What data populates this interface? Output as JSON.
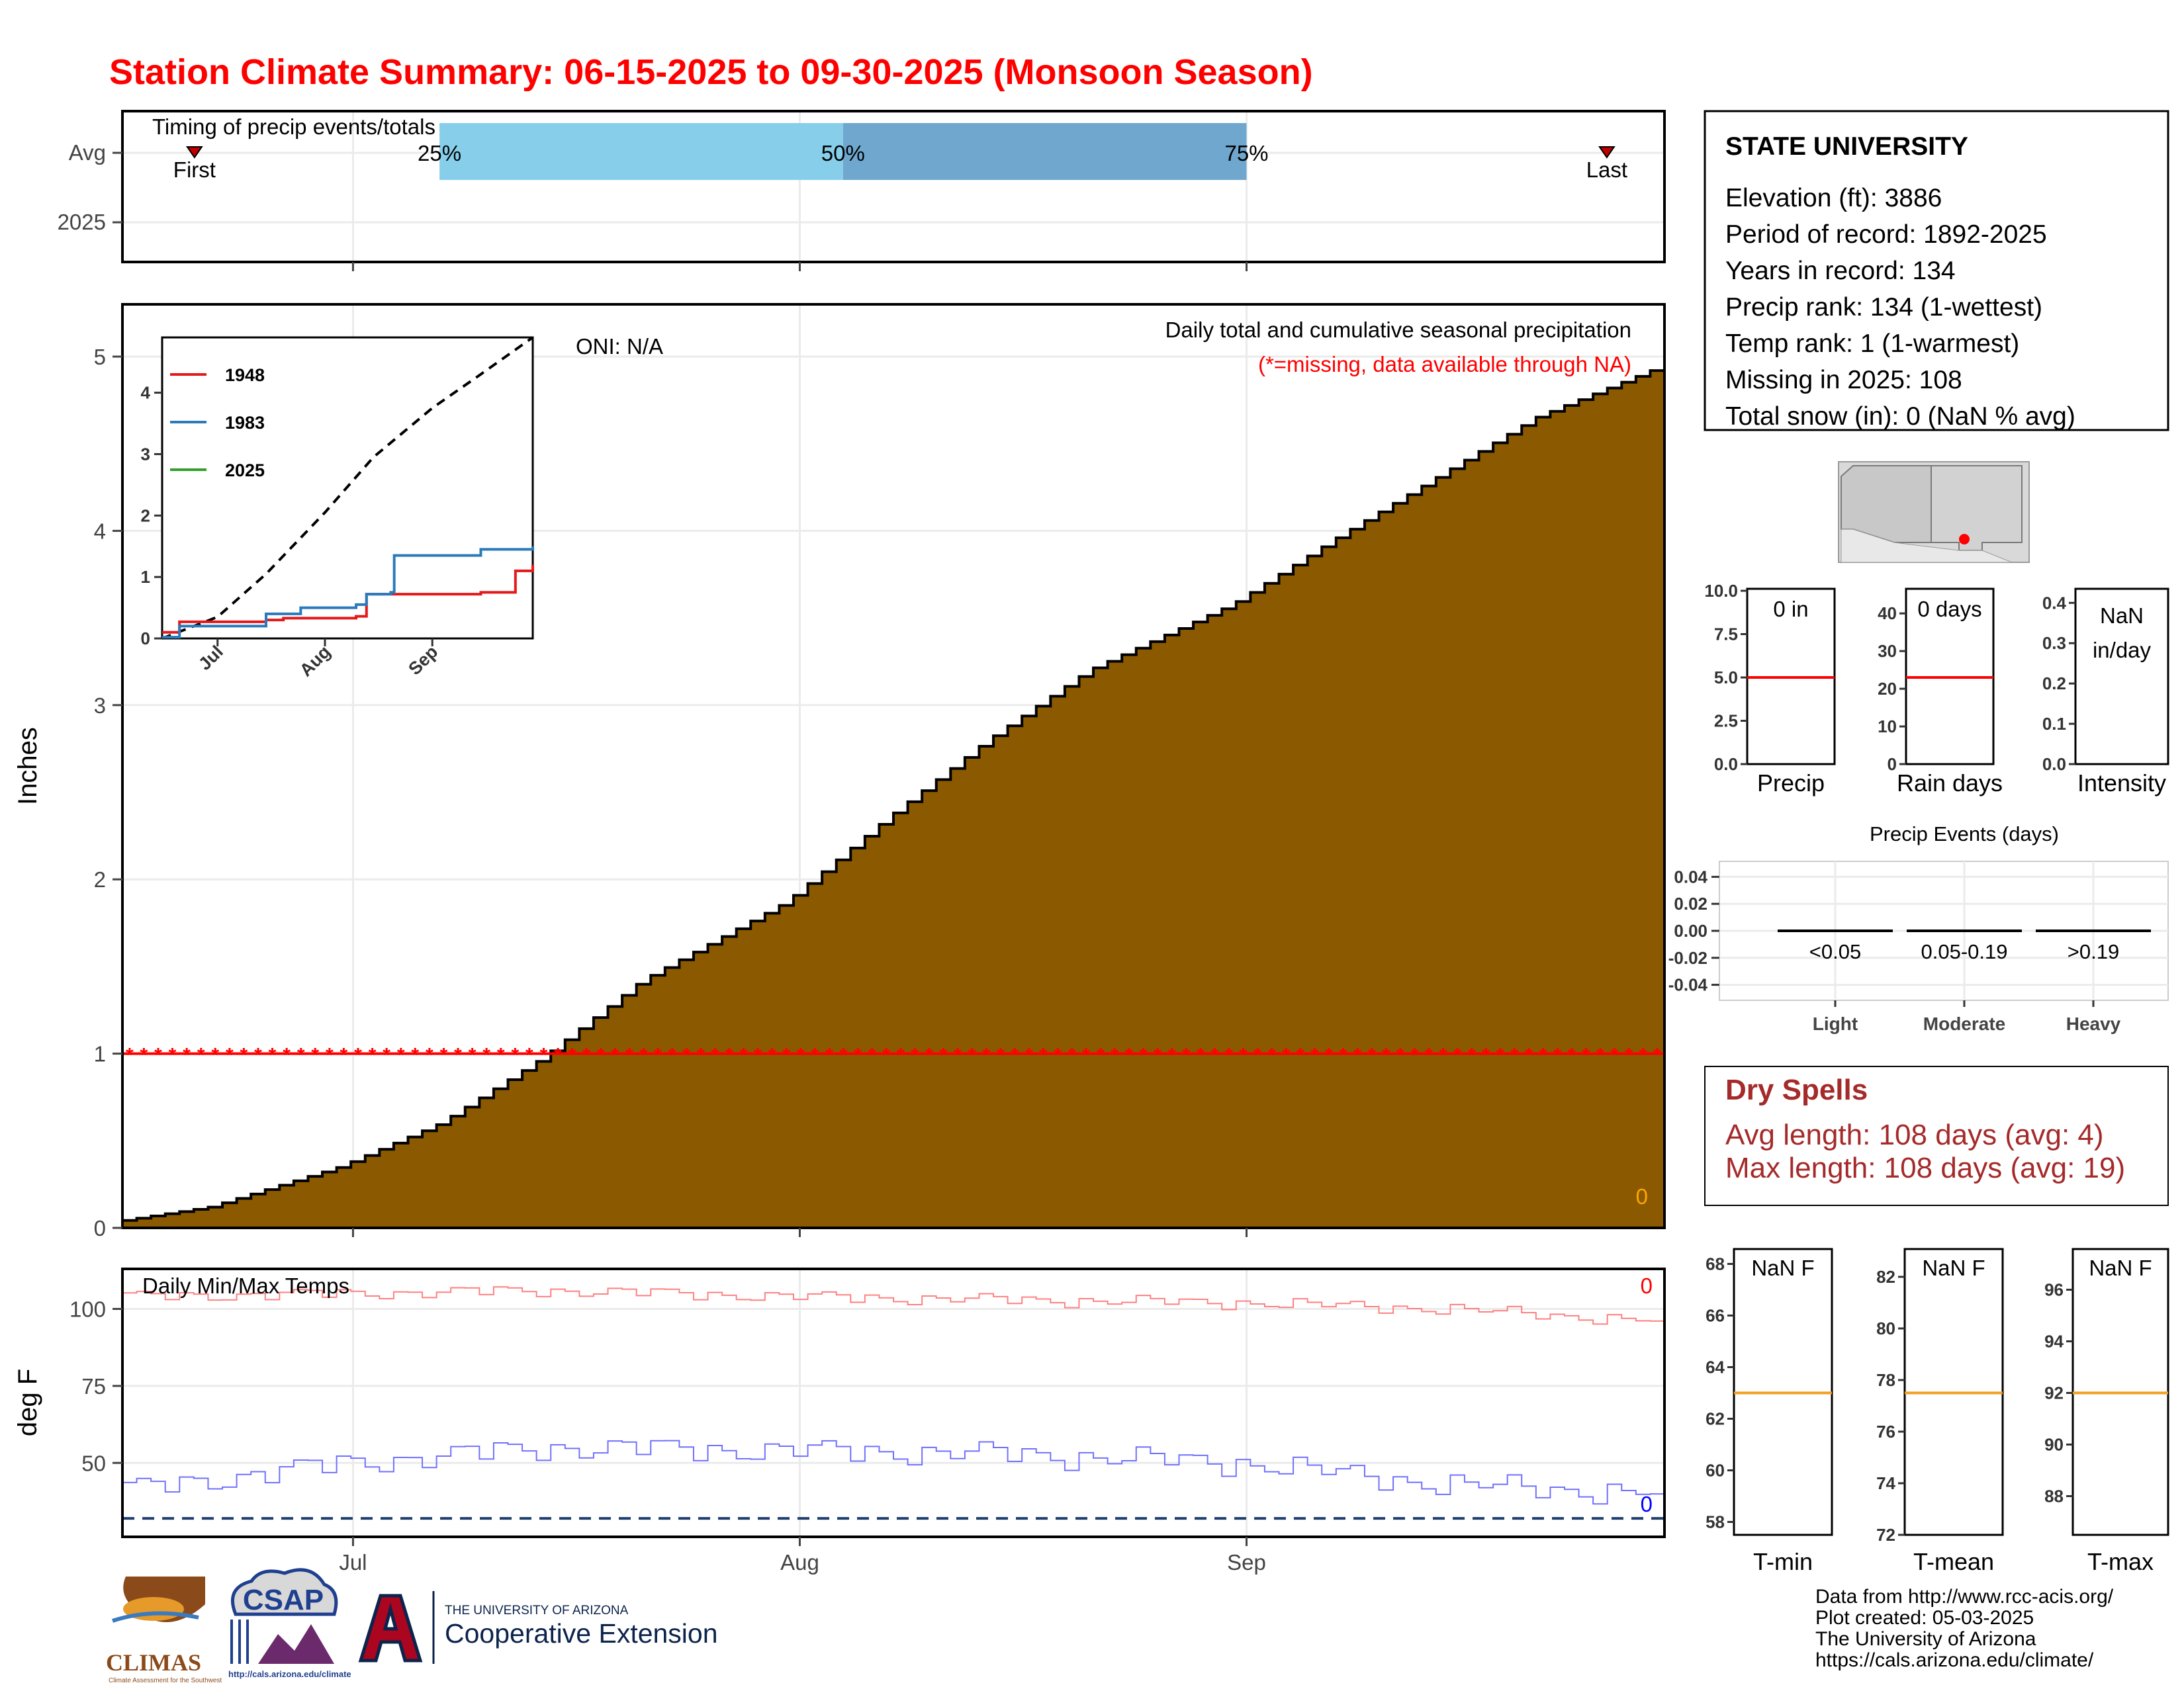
{
  "page": {
    "title": "Station Climate Summary: 06-15-2025 to 09-30-2025 (Monsoon Season)",
    "colors": {
      "title": "#ff0000",
      "precip_fill": "#8b5a00",
      "missing": "#ff0000",
      "tmax": "#ff8080",
      "tmin": "#7070ff",
      "threshold": "#1f3f6f",
      "avg_line": "#f0a020",
      "dry_spells": "#a52a2a"
    }
  },
  "timing": {
    "label": "Timing of precip events/totals",
    "y_labels": [
      "Avg",
      "2025"
    ],
    "pct_labels": [
      "25%",
      "50%",
      "75%"
    ],
    "first_label": "First",
    "last_label": "Last",
    "markers": {
      "first": "2025-06-20",
      "p25": "2025-07-07",
      "p50": "2025-08-04",
      "p75": "2025-09-01",
      "last": "2025-09-26"
    },
    "colors": {
      "q1": "#87ceeb",
      "q2": "#6fa7cf"
    }
  },
  "station_info": {
    "name": "STATE UNIVERSITY",
    "lines": [
      "Elevation (ft): 3886",
      "Period of record: 1892-2025",
      "Years in record: 134",
      "Precip rank: 134 (1-wettest)",
      "Temp rank: 1 (1-warmest)",
      "Missing in 2025: 108",
      "Total snow (in): 0 (NaN % avg)"
    ]
  },
  "precip_panel": {
    "ylabel": "Inches",
    "title_line1": "Daily total and cumulative seasonal precipitation",
    "title_line2": "(*=missing, data available through NA)",
    "oni_label": "ONI: N/A",
    "count_label": "0",
    "missing_marker": "*",
    "x_ticks": [
      "Jul",
      "Aug",
      "Sep"
    ]
  },
  "inset": {
    "legend": [
      "1948",
      "1983",
      "2025"
    ],
    "colors": [
      "#e31a1c",
      "#2b7bba",
      "#33a02c"
    ],
    "x_ticks": [
      "Jul",
      "Aug",
      "Sep"
    ]
  },
  "mini_bars": [
    {
      "value_label": "0 in",
      "xlabel": "Precip"
    },
    {
      "value_label": "0 days",
      "xlabel": "Rain days"
    },
    {
      "value_label": "NaN in/day",
      "xlabel": "Intensity"
    }
  ],
  "precip_events": {
    "title": "Precip Events (days)",
    "x_labels": [
      "Light",
      "Moderate",
      "Heavy"
    ],
    "bar_labels": [
      "<0.05",
      "0.05-0.19",
      ">0.19"
    ]
  },
  "dry_spells": {
    "title": "Dry Spells",
    "avg": "Avg length: 108 days (avg: 4)",
    "max": "Max length: 108 days (avg: 19)"
  },
  "temp_panel": {
    "ylabel": "deg F",
    "title": "Daily Min/Max Temps",
    "tmax_count": "0",
    "tmin_count": "0",
    "x_ticks": [
      "Jul",
      "Aug",
      "Sep"
    ]
  },
  "temp_summaries": [
    {
      "value_label": "NaN F",
      "xlabel": "T-min"
    },
    {
      "value_label": "NaN F",
      "xlabel": "T-mean"
    },
    {
      "value_label": "NaN F",
      "xlabel": "T-max"
    }
  ],
  "logos": {
    "climas": "CLIMAS",
    "climas_sub": "Climate Assessment for the Southwest",
    "csap": "CSAP",
    "csap_url": "http://cals.arizona.edu/climate",
    "ua_small": "THE UNIVERSITY OF ARIZONA",
    "ua_big": "Cooperative Extension"
  },
  "footer": [
    "Data from http://www.rcc-acis.org/",
    "Plot created: 05-03-2025",
    "The University of Arizona",
    "https://cals.arizona.edu/climate/"
  ],
  "chart_data": [
    {
      "id": "timing",
      "type": "bar",
      "title": "Timing of precip events/totals",
      "categories": [
        "Avg",
        "2025"
      ],
      "avg_percentile_dates": {
        "25%": "2025-07-07",
        "50%": "2025-08-04",
        "75%": "2025-09-01"
      },
      "avg_first_event": "2025-06-20",
      "avg_last_event": "2025-09-26",
      "x_range": [
        "2025-06-15",
        "2025-09-30"
      ]
    },
    {
      "id": "cumulative_precip",
      "type": "area",
      "title": "Daily total and cumulative seasonal precipitation",
      "ylabel": "Inches",
      "ylim": [
        0,
        5.3
      ],
      "x_range": [
        "2025-06-15",
        "2025-09-30"
      ],
      "x_ticks": [
        "Jul",
        "Aug",
        "Sep"
      ],
      "y_ticks": [
        0,
        1,
        2,
        3,
        4,
        5
      ],
      "grid": true,
      "series": [
        {
          "type": "step-area",
          "x": [
            "2025-06-15",
            "2025-06-22",
            "2025-07-01",
            "2025-07-08",
            "2025-07-15",
            "2025-07-22",
            "2025-08-01",
            "2025-08-08",
            "2025-08-15",
            "2025-08-22",
            "2025-09-01",
            "2025-09-08",
            "2025-09-15",
            "2025-09-22",
            "2025-09-30"
          ],
          "y": [
            0.03,
            0.12,
            0.35,
            0.6,
            0.97,
            1.42,
            1.87,
            2.35,
            2.8,
            3.2,
            3.58,
            3.95,
            4.3,
            4.65,
            4.92
          ]
        },
        {
          "name": "missing",
          "type": "markers",
          "y": 1.0
        }
      ]
    },
    {
      "id": "inset_cumulative",
      "type": "line",
      "ylim": [
        0,
        4.9
      ],
      "y_ticks": [
        0,
        1,
        2,
        3,
        4
      ],
      "x_ticks": [
        "Jul",
        "Aug",
        "Sep"
      ],
      "series": [
        {
          "name": "1948",
          "x": [
            "2025-06-15",
            "2025-06-20",
            "2025-07-15",
            "2025-07-20",
            "2025-08-10",
            "2025-08-13",
            "2025-09-15",
            "2025-09-25",
            "2025-09-30"
          ],
          "y": [
            0.1,
            0.27,
            0.3,
            0.33,
            0.36,
            0.72,
            0.75,
            1.1,
            1.2
          ]
        },
        {
          "name": "1983",
          "x": [
            "2025-06-15",
            "2025-06-20",
            "2025-07-07",
            "2025-07-15",
            "2025-07-25",
            "2025-08-10",
            "2025-08-13",
            "2025-08-20",
            "2025-08-21",
            "2025-09-15",
            "2025-09-30"
          ],
          "y": [
            0.02,
            0.2,
            0.2,
            0.4,
            0.5,
            0.55,
            0.72,
            0.75,
            1.35,
            1.45,
            1.5
          ]
        },
        {
          "name": "2025",
          "x": [],
          "y": []
        },
        {
          "name": "average",
          "x": [
            "2025-06-15",
            "2025-07-01",
            "2025-07-15",
            "2025-08-01",
            "2025-08-15",
            "2025-09-01",
            "2025-09-15",
            "2025-09-30"
          ],
          "y": [
            0.0,
            0.35,
            1.05,
            2.05,
            2.95,
            3.75,
            4.3,
            4.9
          ]
        }
      ]
    },
    {
      "id": "precip_total",
      "type": "bar",
      "xlabel": "Precip",
      "ylim": [
        0,
        10
      ],
      "y_ticks": [
        0.0,
        2.5,
        5.0,
        7.5,
        10.0
      ],
      "values": [
        0
      ],
      "average": 5.0
    },
    {
      "id": "rain_days",
      "type": "bar",
      "xlabel": "Rain days",
      "ylim": [
        0,
        46
      ],
      "y_ticks": [
        0,
        10,
        20,
        30,
        40
      ],
      "values": [
        0
      ],
      "average": 23
    },
    {
      "id": "intensity",
      "type": "bar",
      "xlabel": "Intensity",
      "ylim": [
        0,
        0.43
      ],
      "y_ticks": [
        0.0,
        0.1,
        0.2,
        0.3,
        0.4
      ],
      "values": [
        null
      ]
    },
    {
      "id": "precip_events",
      "type": "bar",
      "title": "Precip Events (days)",
      "categories": [
        "Light",
        "Moderate",
        "Heavy"
      ],
      "values": [
        0,
        0,
        0
      ],
      "ylim": [
        -0.05,
        0.05
      ],
      "y_ticks": [
        -0.04,
        -0.02,
        0.0,
        0.02,
        0.04
      ]
    },
    {
      "id": "daily_temps",
      "type": "line",
      "title": "Daily Min/Max Temps",
      "ylabel": "deg F",
      "ylim": [
        26,
        113
      ],
      "y_ticks": [
        50,
        75,
        100
      ],
      "x_ticks": [
        "Jul",
        "Aug",
        "Sep"
      ],
      "threshold": 32,
      "series": [
        {
          "name": "Tmax",
          "x": [
            "2025-06-15",
            "2025-07-01",
            "2025-07-15",
            "2025-08-01",
            "2025-08-15",
            "2025-09-01",
            "2025-09-15",
            "2025-09-30"
          ],
          "y": [
            104,
            105,
            106,
            104,
            103,
            102,
            100,
            96
          ]
        },
        {
          "name": "Tmin",
          "x": [
            "2025-06-15",
            "2025-07-01",
            "2025-07-15",
            "2025-08-01",
            "2025-08-15",
            "2025-09-01",
            "2025-09-15",
            "2025-09-30"
          ],
          "y": [
            41,
            50,
            55,
            54,
            53,
            50,
            43,
            40
          ]
        }
      ]
    },
    {
      "id": "tmin_avg",
      "type": "bar",
      "xlabel": "T-min",
      "ylim": [
        57.5,
        68.5
      ],
      "y_ticks": [
        58,
        60,
        62,
        64,
        66,
        68
      ],
      "values": [
        null
      ],
      "average": 63
    },
    {
      "id": "tmean_avg",
      "type": "bar",
      "xlabel": "T-mean",
      "ylim": [
        72,
        83
      ],
      "y_ticks": [
        72,
        74,
        76,
        78,
        80,
        82
      ],
      "values": [
        null
      ],
      "average": 77.5
    },
    {
      "id": "tmax_avg",
      "type": "bar",
      "xlabel": "T-max",
      "ylim": [
        86.5,
        97.5
      ],
      "y_ticks": [
        88,
        90,
        92,
        94,
        96
      ],
      "values": [
        null
      ],
      "average": 92
    }
  ]
}
